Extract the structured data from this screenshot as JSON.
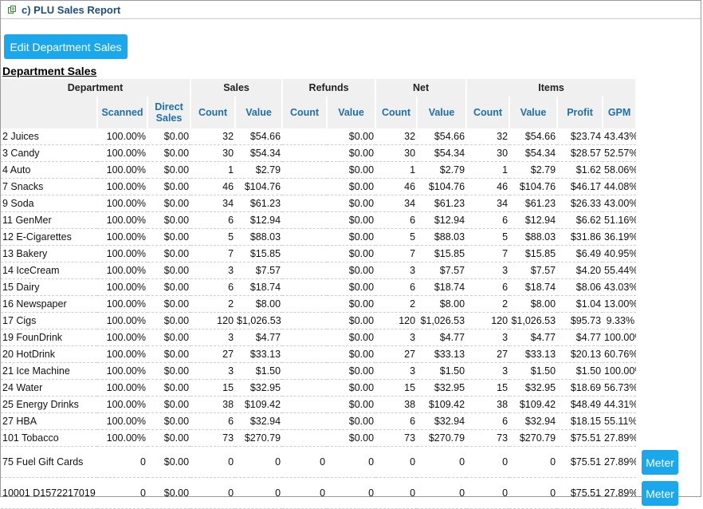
{
  "header": {
    "title": "c) PLU Sales Report",
    "icon": "report-icon"
  },
  "edit_button": "Edit Department Sales",
  "section_title": "Department Sales",
  "table": {
    "group_headers": [
      "Department",
      "Sales",
      "Refunds",
      "Net",
      "Items"
    ],
    "sub_headers": [
      "",
      "Scanned",
      "Direct Sales",
      "Count",
      "Value",
      "Count",
      "Value",
      "Count",
      "Value",
      "Count",
      "Value",
      "Profit",
      "GPM"
    ],
    "rows": [
      [
        "2 Juices",
        "100.00%",
        "$0.00",
        "32",
        "$54.66",
        "",
        "$0.00",
        "32",
        "$54.66",
        "32",
        "$54.66",
        "$23.74",
        "43.43%"
      ],
      [
        "3 Candy",
        "100.00%",
        "$0.00",
        "30",
        "$54.34",
        "",
        "$0.00",
        "30",
        "$54.34",
        "30",
        "$54.34",
        "$28.57",
        "52.57%"
      ],
      [
        "4 Auto",
        "100.00%",
        "$0.00",
        "1",
        "$2.79",
        "",
        "$0.00",
        "1",
        "$2.79",
        "1",
        "$2.79",
        "$1.62",
        "58.06%"
      ],
      [
        "7 Snacks",
        "100.00%",
        "$0.00",
        "46",
        "$104.76",
        "",
        "$0.00",
        "46",
        "$104.76",
        "46",
        "$104.76",
        "$46.17",
        "44.08%"
      ],
      [
        "9 Soda",
        "100.00%",
        "$0.00",
        "34",
        "$61.23",
        "",
        "$0.00",
        "34",
        "$61.23",
        "34",
        "$61.23",
        "$26.33",
        "43.00%"
      ],
      [
        "11 GenMer",
        "100.00%",
        "$0.00",
        "6",
        "$12.94",
        "",
        "$0.00",
        "6",
        "$12.94",
        "6",
        "$12.94",
        "$6.62",
        "51.16%"
      ],
      [
        "12 E-Cigarettes",
        "100.00%",
        "$0.00",
        "5",
        "$88.03",
        "",
        "$0.00",
        "5",
        "$88.03",
        "5",
        "$88.03",
        "$31.86",
        "36.19%"
      ],
      [
        "13 Bakery",
        "100.00%",
        "$0.00",
        "7",
        "$15.85",
        "",
        "$0.00",
        "7",
        "$15.85",
        "7",
        "$15.85",
        "$6.49",
        "40.95%"
      ],
      [
        "14 IceCream",
        "100.00%",
        "$0.00",
        "3",
        "$7.57",
        "",
        "$0.00",
        "3",
        "$7.57",
        "3",
        "$7.57",
        "$4.20",
        "55.44%"
      ],
      [
        "15 Dairy",
        "100.00%",
        "$0.00",
        "6",
        "$18.74",
        "",
        "$0.00",
        "6",
        "$18.74",
        "6",
        "$18.74",
        "$8.06",
        "43.03%"
      ],
      [
        "16 Newspaper",
        "100.00%",
        "$0.00",
        "2",
        "$8.00",
        "",
        "$0.00",
        "2",
        "$8.00",
        "2",
        "$8.00",
        "$1.04",
        "13.00%"
      ],
      [
        "17 Cigs",
        "100.00%",
        "$0.00",
        "120",
        "$1,026.53",
        "",
        "$0.00",
        "120",
        "$1,026.53",
        "120",
        "$1,026.53",
        "$95.73",
        "9.33%"
      ],
      [
        "19 FounDrink",
        "100.00%",
        "$0.00",
        "3",
        "$4.77",
        "",
        "$0.00",
        "3",
        "$4.77",
        "3",
        "$4.77",
        "$4.77",
        "100.00%"
      ],
      [
        "20 HotDrink",
        "100.00%",
        "$0.00",
        "27",
        "$33.13",
        "",
        "$0.00",
        "27",
        "$33.13",
        "27",
        "$33.13",
        "$20.13",
        "60.76%"
      ],
      [
        "21 Ice Machine",
        "100.00%",
        "$0.00",
        "3",
        "$1.50",
        "",
        "$0.00",
        "3",
        "$1.50",
        "3",
        "$1.50",
        "$1.50",
        "100.00%"
      ],
      [
        "24 Water",
        "100.00%",
        "$0.00",
        "15",
        "$32.95",
        "",
        "$0.00",
        "15",
        "$32.95",
        "15",
        "$32.95",
        "$18.69",
        "56.73%"
      ],
      [
        "25 Energy Drinks",
        "100.00%",
        "$0.00",
        "38",
        "$109.42",
        "",
        "$0.00",
        "38",
        "$109.42",
        "38",
        "$109.42",
        "$48.49",
        "44.31%"
      ],
      [
        "27 HBA",
        "100.00%",
        "$0.00",
        "6",
        "$32.94",
        "",
        "$0.00",
        "6",
        "$32.94",
        "6",
        "$32.94",
        "$18.15",
        "55.11%"
      ],
      [
        "101 Tobacco",
        "100.00%",
        "$0.00",
        "73",
        "$270.79",
        "",
        "$0.00",
        "73",
        "$270.79",
        "73",
        "$270.79",
        "$75.51",
        "27.89%"
      ]
    ],
    "meter_rows": [
      {
        "cells": [
          "75 Fuel Gift Cards",
          "0",
          "$0.00",
          "0",
          "0",
          "0",
          "0",
          "0",
          "0",
          "0",
          "0",
          "$75.51",
          "27.89%"
        ],
        "button": "Meter"
      },
      {
        "cells": [
          "10001 D1572217019",
          "0",
          "$0.00",
          "0",
          "0",
          "0",
          "0",
          "0",
          "0",
          "0",
          "0",
          "$75.51",
          "27.89%"
        ],
        "button": "Meter"
      }
    ]
  }
}
